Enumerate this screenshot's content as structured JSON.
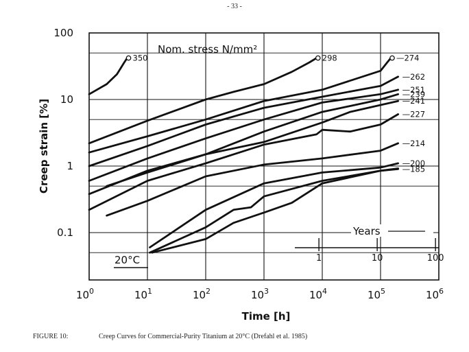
{
  "page_number": "- 33 -",
  "caption": {
    "figure_label": "FIGURE 10:",
    "text": "Creep Curves for Commercial-Purity Titanium at 20°C (Drefahl et al. 1985)"
  },
  "colors": {
    "line": "#111111",
    "grid": "#111111",
    "background": "#ffffff"
  },
  "chart_data": {
    "type": "line",
    "title": "Nom. stress  N/mm²",
    "xlabel": "Time [h]",
    "ylabel": "Creep strain [%]",
    "x_scale": "log",
    "y_scale": "log",
    "xlim": [
      1,
      1000000
    ],
    "ylim": [
      0.02,
      100
    ],
    "x_ticks": [
      {
        "v": 1,
        "b": "10",
        "e": "0"
      },
      {
        "v": 10,
        "b": "10",
        "e": "1"
      },
      {
        "v": 100,
        "b": "10",
        "e": "2"
      },
      {
        "v": 1000,
        "b": "10",
        "e": "3"
      },
      {
        "v": 10000,
        "b": "10",
        "e": "4"
      },
      {
        "v": 100000,
        "b": "10",
        "e": "5"
      },
      {
        "v": 1000000,
        "b": "10",
        "e": "6"
      }
    ],
    "y_ticks": [
      {
        "v": 100,
        "label": "100"
      },
      {
        "v": 10,
        "label": "10"
      },
      {
        "v": 1,
        "label": "1"
      },
      {
        "v": 0.1,
        "label": "0.1"
      }
    ],
    "y_minor": [
      50,
      5,
      0.5,
      0.05
    ],
    "annotation_temp": "20°C",
    "years_axis": {
      "label": "Years",
      "ticks": [
        {
          "years": 1,
          "hours": 8760,
          "label": "1"
        },
        {
          "years": 10,
          "hours": 87600,
          "label": "10"
        },
        {
          "years": 100,
          "hours": 876000,
          "label": "100"
        }
      ]
    },
    "series": [
      {
        "name": "350",
        "rupture": true,
        "points": [
          [
            1,
            12
          ],
          [
            2,
            17
          ],
          [
            3,
            24
          ],
          [
            4,
            36
          ],
          [
            4.5,
            42
          ]
        ]
      },
      {
        "name": "298",
        "rupture": true,
        "points": [
          [
            1,
            2.2
          ],
          [
            10,
            4.8
          ],
          [
            100,
            10
          ],
          [
            300,
            13
          ],
          [
            1000,
            17
          ],
          [
            3000,
            26
          ],
          [
            6000,
            36
          ],
          [
            8000,
            42
          ]
        ]
      },
      {
        "name": "274",
        "rupture": true,
        "points": [
          [
            1,
            1.6
          ],
          [
            10,
            2.8
          ],
          [
            100,
            5
          ],
          [
            1000,
            9.5
          ],
          [
            10000,
            14
          ],
          [
            100000,
            27
          ],
          [
            130000,
            36
          ],
          [
            150000,
            42
          ]
        ]
      },
      {
        "name": "262",
        "points": [
          [
            1,
            1.0
          ],
          [
            10,
            2.0
          ],
          [
            100,
            4.2
          ],
          [
            1000,
            7.5
          ],
          [
            10000,
            11
          ],
          [
            100000,
            16
          ],
          [
            200000,
            22
          ]
        ]
      },
      {
        "name": "251",
        "points": [
          [
            1,
            0.6
          ],
          [
            10,
            1.3
          ],
          [
            100,
            2.6
          ],
          [
            1000,
            5
          ],
          [
            10000,
            9
          ],
          [
            100000,
            12
          ],
          [
            200000,
            14
          ]
        ]
      },
      {
        "name": "239",
        "points": [
          [
            2,
            0.5
          ],
          [
            10,
            0.8
          ],
          [
            100,
            1.5
          ],
          [
            1000,
            3.3
          ],
          [
            10000,
            6.5
          ],
          [
            100000,
            10
          ],
          [
            200000,
            12
          ]
        ]
      },
      {
        "name": "241",
        "points": [
          [
            1,
            0.38
          ],
          [
            10,
            0.85
          ],
          [
            100,
            1.5
          ],
          [
            1000,
            2.3
          ],
          [
            10000,
            4.5
          ],
          [
            30000,
            6.5
          ],
          [
            200000,
            9.5
          ]
        ]
      },
      {
        "name": "227",
        "points": [
          [
            1,
            0.22
          ],
          [
            10,
            0.6
          ],
          [
            100,
            1.1
          ],
          [
            1000,
            2.1
          ],
          [
            8000,
            3.0
          ],
          [
            10000,
            3.5
          ],
          [
            30000,
            3.3
          ],
          [
            100000,
            4.2
          ],
          [
            200000,
            6
          ]
        ]
      },
      {
        "name": "214",
        "points": [
          [
            2,
            0.18
          ],
          [
            10,
            0.3
          ],
          [
            100,
            0.7
          ],
          [
            1000,
            1.05
          ],
          [
            10000,
            1.3
          ],
          [
            100000,
            1.7
          ],
          [
            200000,
            2.2
          ]
        ]
      },
      {
        "name": "200",
        "points": [
          [
            11,
            0.06
          ],
          [
            100,
            0.22
          ],
          [
            1000,
            0.55
          ],
          [
            10000,
            0.8
          ],
          [
            100000,
            0.95
          ],
          [
            200000,
            1.1
          ]
        ]
      },
      {
        "name": "185",
        "points": [
          [
            11,
            0.05
          ],
          [
            100,
            0.12
          ],
          [
            300,
            0.22
          ],
          [
            600,
            0.24
          ],
          [
            1000,
            0.35
          ],
          [
            10000,
            0.6
          ],
          [
            100000,
            0.85
          ],
          [
            200000,
            0.9
          ]
        ]
      },
      {
        "name": "",
        "points": [
          [
            12,
            0.05
          ],
          [
            100,
            0.08
          ],
          [
            300,
            0.14
          ],
          [
            1000,
            0.2
          ],
          [
            3000,
            0.28
          ],
          [
            10000,
            0.55
          ],
          [
            100000,
            0.85
          ],
          [
            200000,
            0.92
          ]
        ]
      }
    ]
  }
}
